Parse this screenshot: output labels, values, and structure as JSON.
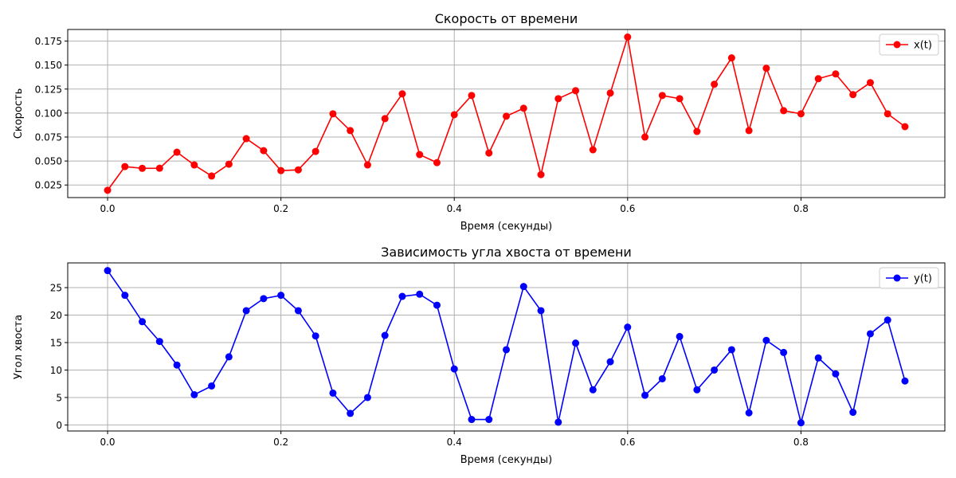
{
  "chart_data": [
    {
      "type": "line",
      "title": "Скорость от времени",
      "xlabel": "Время (секунды)",
      "ylabel": "Скорость",
      "xlim": [
        -0.046,
        0.966
      ],
      "ylim": [
        0.0119,
        0.1871
      ],
      "xticks": [
        0.0,
        0.2,
        0.4,
        0.6,
        0.8
      ],
      "xtick_labels": [
        "0.0",
        "0.2",
        "0.4",
        "0.6",
        "0.8"
      ],
      "yticks": [
        0.025,
        0.05,
        0.075,
        0.1,
        0.125,
        0.15,
        0.175
      ],
      "ytick_labels": [
        "0.025",
        "0.050",
        "0.075",
        "0.100",
        "0.125",
        "0.150",
        "0.175"
      ],
      "grid": true,
      "legend": "top-right",
      "series": [
        {
          "name": "x(t)",
          "color": "#ff0000",
          "marker": "circle",
          "x": [
            0.0,
            0.02,
            0.04,
            0.06,
            0.08,
            0.1,
            0.12,
            0.14,
            0.16,
            0.18,
            0.2,
            0.22,
            0.24,
            0.26,
            0.28,
            0.3,
            0.32,
            0.34,
            0.36,
            0.38,
            0.4,
            0.42,
            0.44,
            0.46,
            0.48,
            0.5,
            0.52,
            0.54,
            0.56,
            0.58,
            0.6,
            0.62,
            0.64,
            0.66,
            0.68,
            0.7,
            0.72,
            0.74,
            0.76,
            0.78,
            0.8,
            0.82,
            0.84,
            0.86,
            0.88,
            0.9,
            0.92
          ],
          "y": [
            0.0195,
            0.0442,
            0.0424,
            0.0425,
            0.0592,
            0.0459,
            0.0344,
            0.0467,
            0.0733,
            0.0608,
            0.04,
            0.0408,
            0.06,
            0.0992,
            0.0817,
            0.0459,
            0.0942,
            0.12,
            0.0567,
            0.0483,
            0.0983,
            0.1183,
            0.0583,
            0.0967,
            0.105,
            0.0358,
            0.115,
            0.1233,
            0.0617,
            0.1208,
            0.1792,
            0.075,
            0.1183,
            0.115,
            0.0808,
            0.13,
            0.1575,
            0.0817,
            0.1467,
            0.1025,
            0.0992,
            0.1358,
            0.1408,
            0.1192,
            0.1317,
            0.0992,
            0.0858
          ]
        }
      ]
    },
    {
      "type": "line",
      "title": "Зависимость угла хвоста от времени",
      "xlabel": "Время (секунды)",
      "ylabel": "Угол хвоста",
      "xlim": [
        -0.046,
        0.966
      ],
      "ylim": [
        -1.1,
        29.5
      ],
      "xticks": [
        0.0,
        0.2,
        0.4,
        0.6,
        0.8
      ],
      "xtick_labels": [
        "0.0",
        "0.2",
        "0.4",
        "0.6",
        "0.8"
      ],
      "yticks": [
        0,
        5,
        10,
        15,
        20,
        25
      ],
      "ytick_labels": [
        "0",
        "5",
        "10",
        "15",
        "20",
        "25"
      ],
      "grid": true,
      "legend": "top-right",
      "series": [
        {
          "name": "y(t)",
          "color": "#0000ff",
          "marker": "circle",
          "x": [
            0.0,
            0.02,
            0.04,
            0.06,
            0.08,
            0.1,
            0.12,
            0.14,
            0.16,
            0.18,
            0.2,
            0.22,
            0.24,
            0.26,
            0.28,
            0.3,
            0.32,
            0.34,
            0.36,
            0.38,
            0.4,
            0.42,
            0.44,
            0.46,
            0.48,
            0.5,
            0.52,
            0.54,
            0.56,
            0.58,
            0.6,
            0.62,
            0.64,
            0.66,
            0.68,
            0.7,
            0.72,
            0.74,
            0.76,
            0.78,
            0.8,
            0.82,
            0.84,
            0.86,
            0.88,
            0.9,
            0.92
          ],
          "y": [
            28.1,
            23.6,
            18.8,
            15.2,
            10.9,
            5.5,
            7.1,
            12.4,
            20.8,
            23.0,
            23.6,
            20.8,
            16.2,
            5.8,
            2.1,
            5.0,
            16.3,
            23.4,
            23.8,
            21.8,
            10.2,
            1.0,
            1.0,
            13.7,
            25.2,
            20.8,
            0.5,
            14.9,
            6.4,
            11.5,
            17.8,
            5.4,
            8.4,
            16.1,
            6.4,
            10.0,
            13.7,
            2.2,
            15.4,
            13.2,
            0.4,
            12.2,
            9.3,
            2.3,
            16.6,
            19.1,
            8.0
          ]
        }
      ]
    }
  ]
}
